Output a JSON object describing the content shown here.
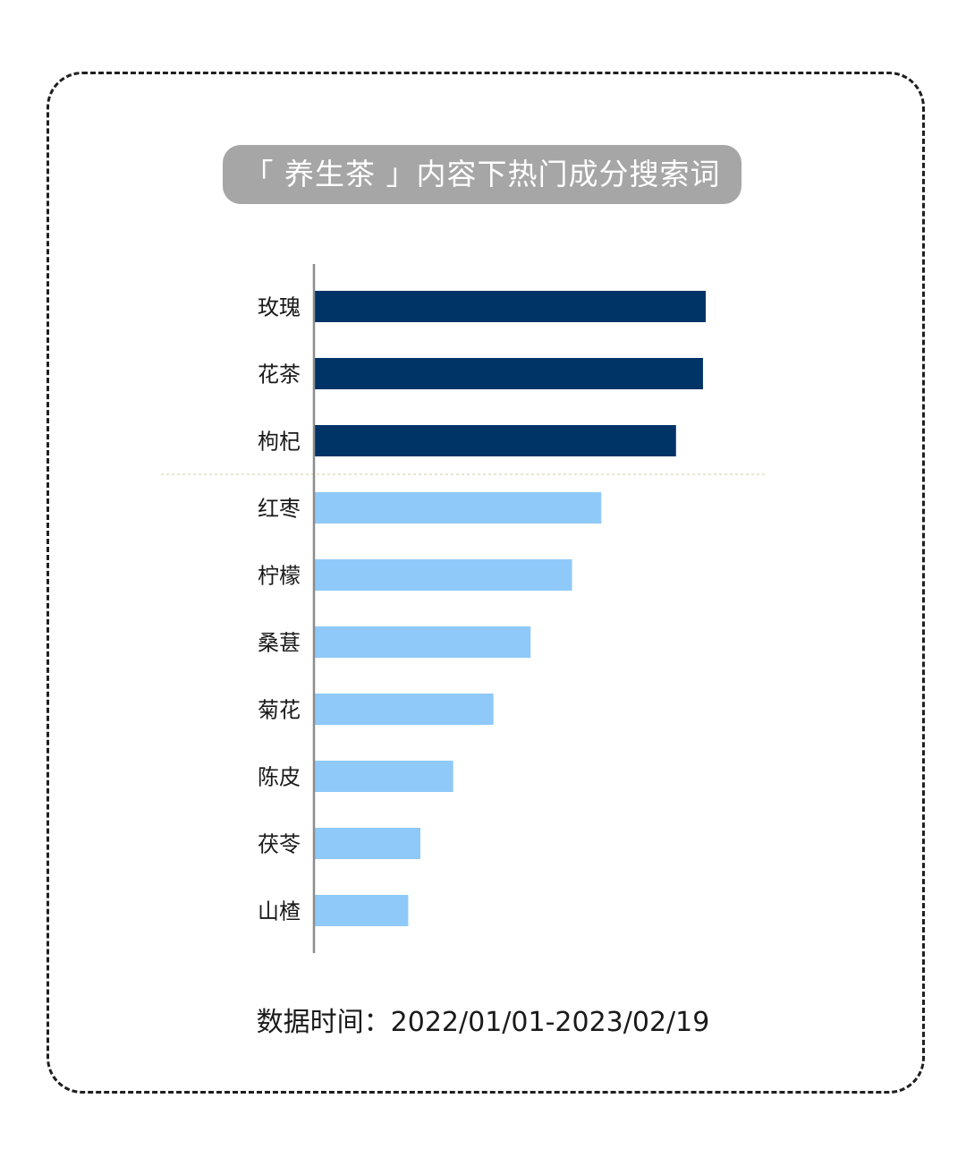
{
  "title": "「 养生茶 」内容下热门成分搜索词",
  "chart_data": {
    "type": "bar",
    "orientation": "horizontal",
    "categories": [
      "玫瑰",
      "花茶",
      "枸杞",
      "红枣",
      "柠檬",
      "桑葚",
      "菊花",
      "陈皮",
      "茯苓",
      "山楂"
    ],
    "values": [
      100,
      99.3,
      92.4,
      73.3,
      65.8,
      55.2,
      45.7,
      35.4,
      27.0,
      23.9
    ],
    "highlight_top_n": 3,
    "colors": {
      "highlight": "#003366",
      "normal": "#8fc9fa",
      "axis": "#8c8c8c",
      "divider": "#e6dcc0"
    },
    "xlim": [
      0,
      100
    ],
    "grid": false,
    "legend": "none"
  },
  "footer": {
    "date_range": "数据时间：2022/01/01-2023/02/19"
  }
}
